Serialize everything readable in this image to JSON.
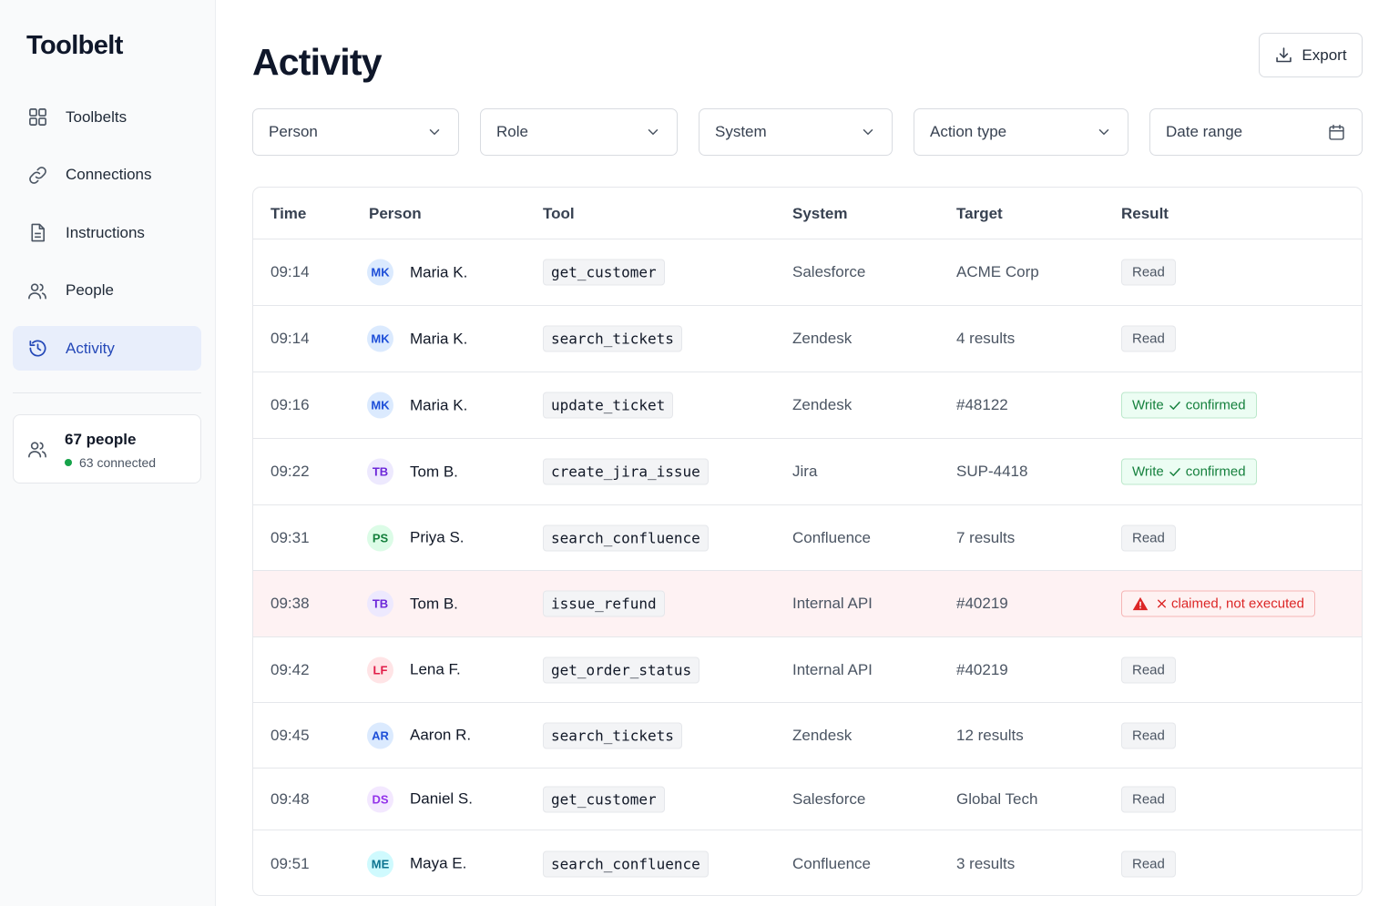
{
  "app": {
    "name": "Toolbelt"
  },
  "sidebar": {
    "items": [
      {
        "label": "Toolbelts",
        "icon": "grid-icon",
        "active": false
      },
      {
        "label": "Connections",
        "icon": "link-icon",
        "active": false
      },
      {
        "label": "Instructions",
        "icon": "document-icon",
        "active": false
      },
      {
        "label": "People",
        "icon": "users-icon",
        "active": false
      },
      {
        "label": "Activity",
        "icon": "history-icon",
        "active": true
      }
    ],
    "people_card": {
      "count": "67 people",
      "connected": "63 connected"
    }
  },
  "page": {
    "title": "Activity",
    "export_label": "Export"
  },
  "filters": {
    "person": "Person",
    "role": "Role",
    "system": "System",
    "action_type": "Action type",
    "date_range": "Date range"
  },
  "table": {
    "headers": {
      "time": "Time",
      "person": "Person",
      "tool": "Tool",
      "system": "System",
      "target": "Target",
      "result": "Result"
    },
    "rows": [
      {
        "time": "09:14",
        "initials": "MK",
        "person": "Maria K.",
        "tool": "get_customer",
        "system": "Salesforce",
        "target": "ACME Corp",
        "result_type": "read",
        "result": "Read"
      },
      {
        "time": "09:14",
        "initials": "MK",
        "person": "Maria K.",
        "tool": "search_tickets",
        "system": "Zendesk",
        "target": "4 results",
        "result_type": "read",
        "result": "Read"
      },
      {
        "time": "09:16",
        "initials": "MK",
        "person": "Maria K.",
        "tool": "update_ticket",
        "system": "Zendesk",
        "target": "#48122",
        "result_type": "write",
        "result": "Write",
        "result_suffix": "confirmed"
      },
      {
        "time": "09:22",
        "initials": "TB",
        "person": "Tom B.",
        "tool": "create_jira_issue",
        "system": "Jira",
        "target": "SUP-4418",
        "result_type": "write",
        "result": "Write",
        "result_suffix": "confirmed"
      },
      {
        "time": "09:31",
        "initials": "PS",
        "person": "Priya S.",
        "tool": "search_confluence",
        "system": "Confluence",
        "target": "7 results",
        "result_type": "read",
        "result": "Read"
      },
      {
        "time": "09:38",
        "initials": "TB",
        "person": "Tom B.",
        "tool": "issue_refund",
        "system": "Internal API",
        "target": "#40219",
        "result_type": "error",
        "result": "claimed, not executed"
      },
      {
        "time": "09:42",
        "initials": "LF",
        "person": "Lena F.",
        "tool": "get_order_status",
        "system": "Internal API",
        "target": "#40219",
        "result_type": "read",
        "result": "Read"
      },
      {
        "time": "09:45",
        "initials": "AR",
        "person": "Aaron R.",
        "tool": "search_tickets",
        "system": "Zendesk",
        "target": "12 results",
        "result_type": "read",
        "result": "Read"
      },
      {
        "time": "09:48",
        "initials": "DS",
        "person": "Daniel S.",
        "tool": "get_customer",
        "system": "Salesforce",
        "target": "Global Tech",
        "result_type": "read",
        "result": "Read"
      },
      {
        "time": "09:51",
        "initials": "ME",
        "person": "Maya E.",
        "tool": "search_confluence",
        "system": "Confluence",
        "target": "3 results",
        "result_type": "read",
        "result": "Read"
      }
    ]
  },
  "colors": {
    "accent": "#2448b8",
    "read_badge": "#f3f4f6",
    "write_badge": "#15803d",
    "error_badge": "#dc2626",
    "error_row": "#fef2f3",
    "avatars": {
      "MK": {
        "bg": "#dbeafe",
        "fg": "#1d4ed8"
      },
      "TB": {
        "bg": "#ede9fe",
        "fg": "#6d28d9"
      },
      "PS": {
        "bg": "#dcfce7",
        "fg": "#15803d"
      },
      "LF": {
        "bg": "#ffe4e6",
        "fg": "#e11d48"
      },
      "AR": {
        "bg": "#dbeafe",
        "fg": "#1d4ed8"
      },
      "DS": {
        "bg": "#f3e8ff",
        "fg": "#9333ea"
      },
      "ME": {
        "bg": "#cffafe",
        "fg": "#0e7490"
      }
    }
  }
}
